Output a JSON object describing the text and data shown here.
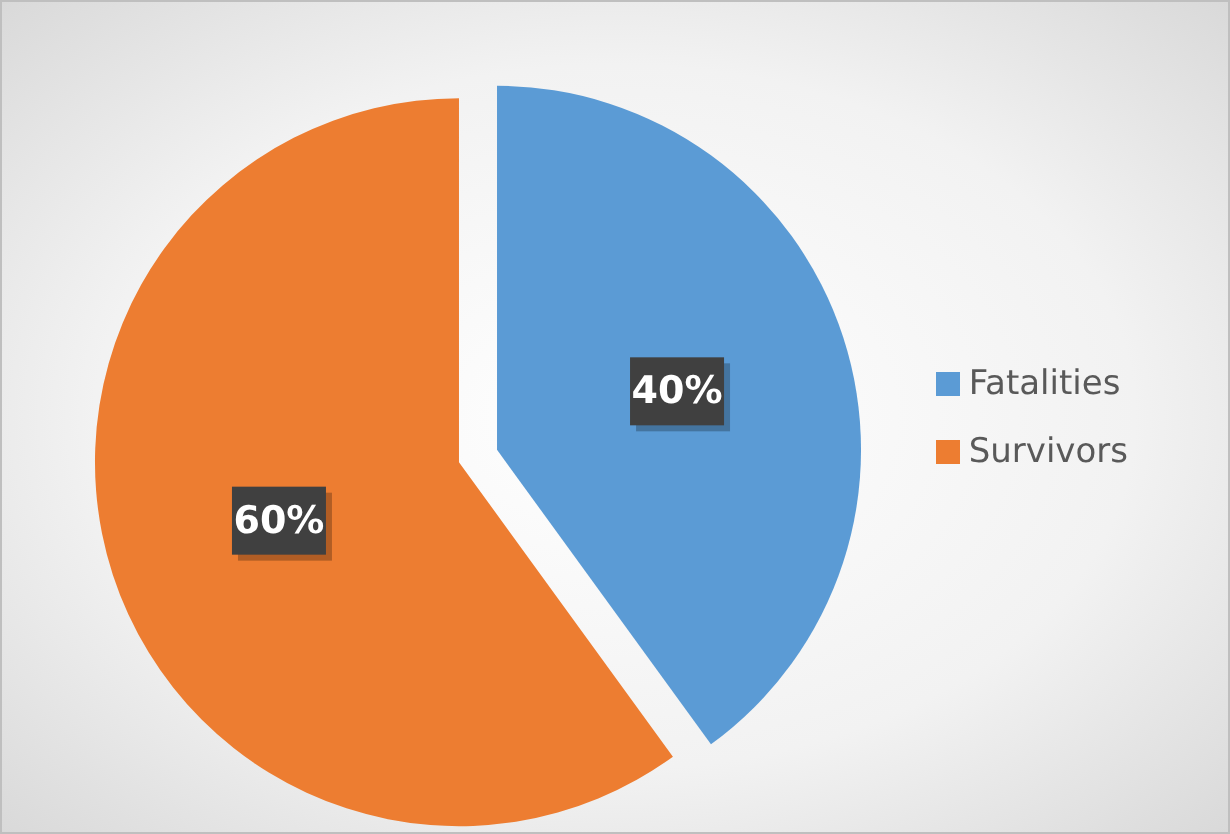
{
  "chart_data": {
    "type": "pie",
    "categories": [
      "Fatalities",
      "Survivors"
    ],
    "values": [
      40,
      60
    ],
    "colors": [
      "#5b9bd5",
      "#ed7d31"
    ],
    "value_labels": [
      "40%",
      "60%"
    ],
    "legend": "right"
  }
}
